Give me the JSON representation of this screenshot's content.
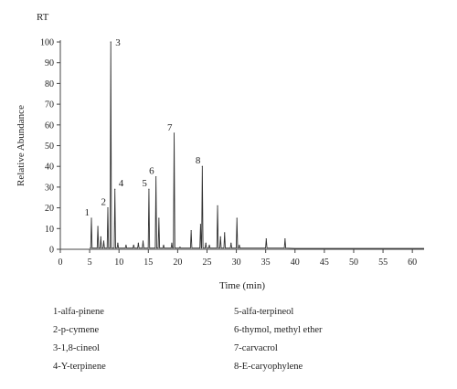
{
  "chart_data": {
    "type": "line",
    "title": "",
    "corner_label": "RT",
    "xlabel": "Time (min)",
    "ylabel": "Relative Abundance",
    "xlim": [
      0,
      62
    ],
    "ylim": [
      0,
      100
    ],
    "x_ticks": [
      0,
      5,
      10,
      15,
      20,
      25,
      30,
      35,
      40,
      45,
      50,
      55,
      60
    ],
    "y_ticks": [
      0,
      10,
      20,
      30,
      40,
      50,
      60,
      70,
      80,
      90,
      100
    ],
    "grid": false,
    "peaks": [
      {
        "x": 5.3,
        "y": 15,
        "label": "1"
      },
      {
        "x": 6.4,
        "y": 11
      },
      {
        "x": 6.9,
        "y": 6
      },
      {
        "x": 7.4,
        "y": 4
      },
      {
        "x": 8.1,
        "y": 20,
        "label": "2"
      },
      {
        "x": 8.6,
        "y": 100,
        "label": "3"
      },
      {
        "x": 9.3,
        "y": 29,
        "label": "4"
      },
      {
        "x": 9.8,
        "y": 3
      },
      {
        "x": 11.2,
        "y": 2
      },
      {
        "x": 12.5,
        "y": 2
      },
      {
        "x": 13.3,
        "y": 3
      },
      {
        "x": 14.1,
        "y": 4
      },
      {
        "x": 15.1,
        "y": 29,
        "label": "5"
      },
      {
        "x": 16.3,
        "y": 35,
        "label": "6"
      },
      {
        "x": 16.8,
        "y": 15
      },
      {
        "x": 17.6,
        "y": 2
      },
      {
        "x": 19.0,
        "y": 3
      },
      {
        "x": 19.4,
        "y": 56,
        "label": "7"
      },
      {
        "x": 20.4,
        "y": 1
      },
      {
        "x": 22.3,
        "y": 9
      },
      {
        "x": 23.9,
        "y": 12
      },
      {
        "x": 24.2,
        "y": 40,
        "label": "8"
      },
      {
        "x": 24.8,
        "y": 3
      },
      {
        "x": 25.4,
        "y": 2
      },
      {
        "x": 26.8,
        "y": 21
      },
      {
        "x": 27.3,
        "y": 6
      },
      {
        "x": 28.0,
        "y": 8
      },
      {
        "x": 29.1,
        "y": 3
      },
      {
        "x": 30.1,
        "y": 15
      },
      {
        "x": 30.5,
        "y": 2
      },
      {
        "x": 35.1,
        "y": 5
      },
      {
        "x": 38.3,
        "y": 5
      }
    ],
    "legend": [
      "1-alfa-pinene",
      "2-p-cymene",
      "3-1,8-cineol",
      "4-Y-terpinene",
      "5-alfa-terpineol",
      "6-thymol, methyl ether",
      "7-carvacrol",
      "8-E-caryophylene"
    ],
    "colors": {
      "line": "#333333",
      "axis": "#444444"
    }
  }
}
